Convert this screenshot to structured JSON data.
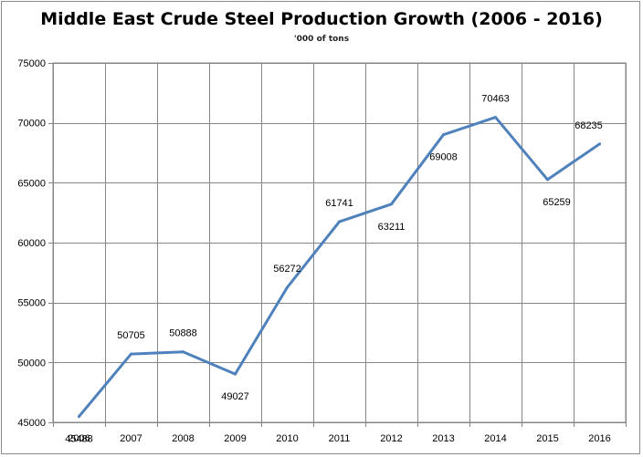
{
  "chart_data": {
    "type": "line",
    "title": "Middle East Crude Steel Production Growth (2006 - 2016)",
    "subtitle": "'000 of tons",
    "xlabel": "",
    "ylabel": "",
    "x": [
      "2006",
      "2007",
      "2008",
      "2009",
      "2010",
      "2011",
      "2012",
      "2013",
      "2014",
      "2015",
      "2016"
    ],
    "series": [
      {
        "values": [
          45488,
          50705,
          50888,
          49027,
          56272,
          61741,
          63211,
          69008,
          70463,
          65259,
          68235
        ],
        "labels": [
          "45488",
          "50705",
          "50888",
          "49027",
          "56272",
          "61741",
          "63211",
          "69008",
          "70463",
          "65259",
          "68235"
        ],
        "color": "#4f81bd"
      }
    ],
    "ylim": [
      45000,
      75000
    ],
    "yticks": [
      45000,
      50000,
      55000,
      60000,
      65000,
      70000,
      75000
    ],
    "ytick_labels": [
      "45000",
      "50000",
      "55000",
      "60000",
      "65000",
      "70000",
      "75000"
    ],
    "grid": true,
    "legend": "none"
  }
}
